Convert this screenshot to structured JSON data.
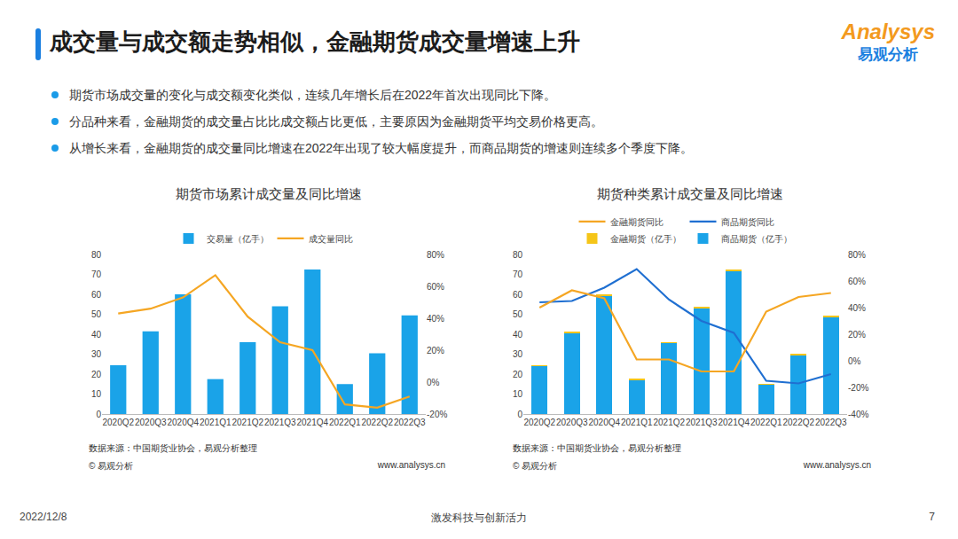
{
  "header": {
    "title": "成交量与成交额走势相似，金融期货成交量增速上升",
    "logo": "Analysys",
    "logo_sub": "易观分析"
  },
  "bullets": [
    "期货市场成交量的变化与成交额变化类似，连续几年增长后在2022年首次出现同比下降。",
    "分品种来看，金融期货的成交量占比比成交额占比更低，主要原因为金融期货平均交易价格更高。",
    "从增长来看，金融期货的成交量同比增速在2022年出现了较大幅度提升，而商品期货的增速则连续多个季度下降。"
  ],
  "chart_data": [
    {
      "type": "bar",
      "title": "期货市场累计成交量及同比增速",
      "categories": [
        "2020Q2",
        "2020Q3",
        "2020Q4",
        "2021Q1",
        "2021Q2",
        "2021Q3",
        "2021Q4",
        "2022Q1",
        "2022Q2",
        "2022Q3"
      ],
      "series": [
        {
          "name": "交易量（亿手）",
          "type": "bar",
          "color": "#1aa3e8",
          "values": [
            24.5,
            41.5,
            60,
            17.5,
            36,
            54,
            72.5,
            15,
            30.5,
            49.5
          ]
        },
        {
          "name": "成交量同比",
          "type": "line",
          "axis": "y2",
          "color": "#f5a623",
          "values": [
            43,
            46,
            53,
            67,
            41,
            25,
            20,
            -14,
            -16,
            -9
          ]
        }
      ],
      "ylim": [
        0,
        80
      ],
      "yticks": [
        0,
        10,
        20,
        30,
        40,
        50,
        60,
        70,
        80
      ],
      "y2lim": [
        -20,
        80
      ],
      "y2ticks": [
        {
          "value": -20,
          "label": "-20%"
        },
        {
          "value": 0,
          "label": "0%"
        },
        {
          "value": 20,
          "label": "20%"
        },
        {
          "value": 40,
          "label": "40%"
        },
        {
          "value": 60,
          "label": "60%"
        },
        {
          "value": 80,
          "label": "80%"
        }
      ],
      "grid": false,
      "legend": "top"
    },
    {
      "type": "bar",
      "title": "期货种类累计成交量及同比增速",
      "categories": [
        "2020Q2",
        "2020Q3",
        "2020Q4",
        "2021Q1",
        "2021Q2",
        "2021Q3",
        "2021Q4",
        "2022Q1",
        "2022Q2",
        "2022Q3"
      ],
      "series": [
        {
          "name": "商品期货（亿手）",
          "type": "bar",
          "color": "#1aa3e8",
          "values": [
            24,
            40.5,
            59,
            17,
            35.5,
            53,
            71.5,
            14.5,
            29.5,
            48.5
          ]
        },
        {
          "name": "金融期货（亿手）",
          "type": "bar",
          "color": "#f5c518",
          "values": [
            0.5,
            0.8,
            1,
            0.6,
            0.6,
            0.8,
            1,
            0.5,
            0.8,
            1
          ]
        },
        {
          "name": "商品期货同比",
          "type": "line",
          "axis": "y2",
          "color": "#1f6fd1",
          "values": [
            44,
            45,
            55,
            69,
            46,
            30,
            21,
            -15,
            -17,
            -10
          ]
        },
        {
          "name": "金融期货同比",
          "type": "line",
          "axis": "y2",
          "color": "#f5a623",
          "values": [
            40,
            53,
            47,
            1,
            1,
            -8,
            -8,
            37,
            48,
            51
          ]
        }
      ],
      "ylim": [
        0,
        80
      ],
      "yticks": [
        0,
        10,
        20,
        30,
        40,
        50,
        60,
        70,
        80
      ],
      "y2lim": [
        -40,
        80
      ],
      "y2ticks": [
        {
          "value": -40,
          "label": "-40%"
        },
        {
          "value": -20,
          "label": "-20%"
        },
        {
          "value": 0,
          "label": "0%"
        },
        {
          "value": 20,
          "label": "20%"
        },
        {
          "value": 40,
          "label": "40%"
        },
        {
          "value": 60,
          "label": "60%"
        },
        {
          "value": 80,
          "label": "80%"
        }
      ],
      "stacked": true,
      "grid": false,
      "legend": "top"
    }
  ],
  "sources": [
    "数据来源：中国期货业协会，易观分析整理",
    "数据来源：中国期货业协会，易观分析整理"
  ],
  "copyright": "© 易观分析",
  "site": "www.analysys.cn",
  "footer": {
    "date": "2022/12/8",
    "slogan": "激发科技与创新活力",
    "page": "7"
  }
}
